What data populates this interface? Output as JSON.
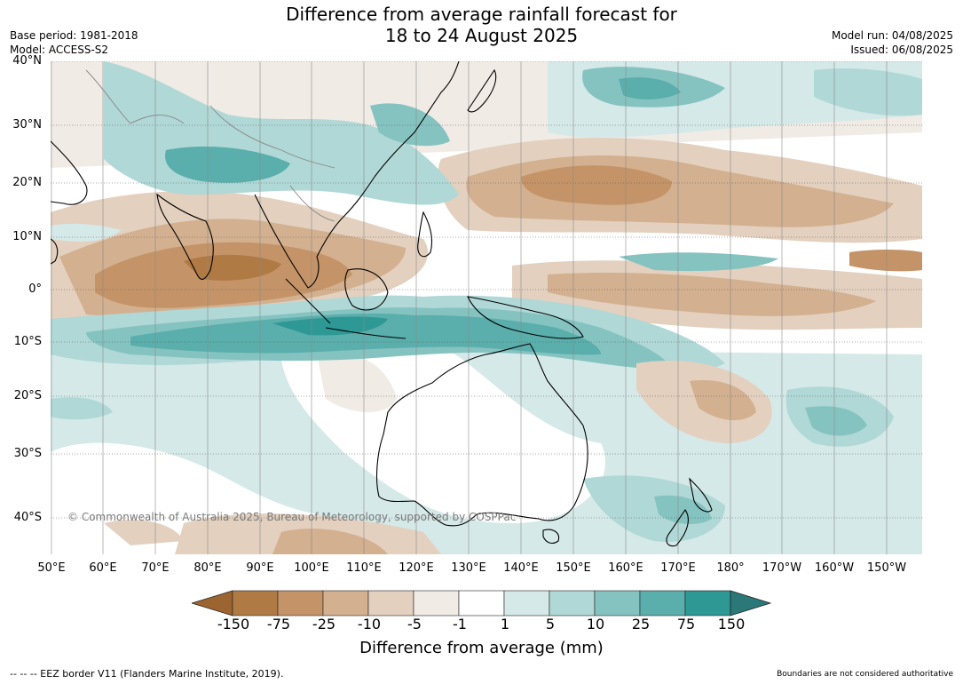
{
  "header": {
    "title_line1": "Difference from average rainfall forecast for",
    "title_line2": "18 to 24 August 2025",
    "base_period": "Base period: 1981-2018",
    "model": "Model: ACCESS-S2",
    "model_run": "Model run: 04/08/2025",
    "issued": "Issued: 06/08/2025"
  },
  "map": {
    "lat_labels": [
      "40°N",
      "30°N",
      "20°N",
      "10°N",
      "0°",
      "10°S",
      "20°S",
      "30°S",
      "40°S"
    ],
    "lon_labels": [
      "50°E",
      "60°E",
      "70°E",
      "80°E",
      "90°E",
      "100°E",
      "110°E",
      "120°E",
      "130°E",
      "140°E",
      "150°E",
      "160°E",
      "170°E",
      "180°",
      "170°W",
      "160°W",
      "150°W"
    ],
    "copyright": "© Commonwealth of Australia 2025, Bureau of Meteorology, supported by COSPPac"
  },
  "legend": {
    "title": "Difference from average (mm)",
    "labels": [
      "-150",
      "-75",
      "-25",
      "-10",
      "-5",
      "-1",
      "1",
      "5",
      "10",
      "25",
      "75",
      "150"
    ],
    "colors": [
      "#9c6430",
      "#b07a45",
      "#c49468",
      "#d3b08f",
      "#e3d0bf",
      "#f1ebe5",
      "#ffffff",
      "#d5e9e8",
      "#b0d8d6",
      "#85c3c1",
      "#5aaeab",
      "#2d9894",
      "#2a7877"
    ]
  },
  "footer": {
    "eez_note": "--  --  -- EEZ border V11 (Flanders Marine Institute, 2019).",
    "disclaimer": "Boundaries are not considered authoritative"
  }
}
